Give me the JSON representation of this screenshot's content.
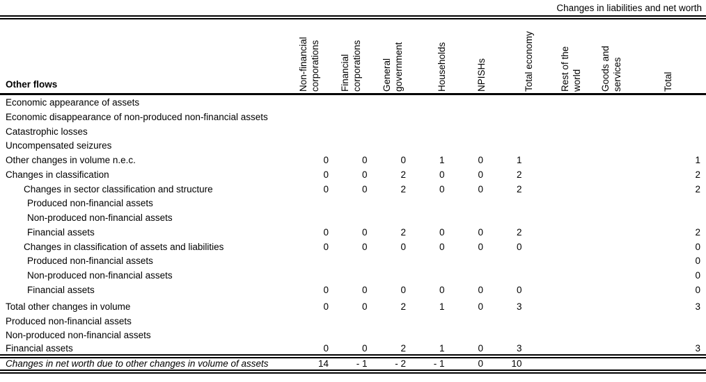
{
  "caption": "Changes in liabilities and net worth",
  "table": {
    "row_header_title": "Other flows",
    "columns": [
      {
        "label": "Non-financial\ncorporations"
      },
      {
        "label": "Financial\ncorporations"
      },
      {
        "label": "General\ngovernment"
      },
      {
        "label": "Households"
      },
      {
        "label": "NPISHs"
      },
      {
        "label": "Total economy"
      },
      {
        "label": "Rest of the\nworld"
      },
      {
        "label": "Goods and\nservices"
      },
      {
        "label": "Total"
      }
    ],
    "rows": [
      {
        "label": "Economic appearance of assets",
        "indent": 0,
        "group": "main",
        "values": [
          "",
          "",
          "",
          "",
          "",
          "",
          "",
          "",
          ""
        ]
      },
      {
        "label": "Economic disappearance of non-produced non-financial assets",
        "indent": 0,
        "group": "main",
        "values": [
          "",
          "",
          "",
          "",
          "",
          "",
          "",
          "",
          ""
        ]
      },
      {
        "label": "Catastrophic losses",
        "indent": 0,
        "group": "main",
        "values": [
          "",
          "",
          "",
          "",
          "",
          "",
          "",
          "",
          ""
        ]
      },
      {
        "label": "Uncompensated seizures",
        "indent": 0,
        "group": "main",
        "values": [
          "",
          "",
          "",
          "",
          "",
          "",
          "",
          "",
          ""
        ]
      },
      {
        "label": "Other changes in volume n.e.c.",
        "indent": 0,
        "group": "main",
        "values": [
          "0",
          "0",
          "0",
          "1",
          "0",
          "1",
          "",
          "",
          "1"
        ]
      },
      {
        "label": "Changes in classification",
        "indent": 0,
        "group": "main",
        "values": [
          "0",
          "0",
          "2",
          "0",
          "0",
          "2",
          "",
          "",
          "2"
        ]
      },
      {
        "label": "Changes in sector classification and structure",
        "indent": 1,
        "group": "main",
        "values": [
          "0",
          "0",
          "2",
          "0",
          "0",
          "2",
          "",
          "",
          "2"
        ]
      },
      {
        "label": "Produced non-financial assets",
        "indent": 2,
        "group": "main",
        "values": [
          "",
          "",
          "",
          "",
          "",
          "",
          "",
          "",
          ""
        ]
      },
      {
        "label": "Non-produced non-financial assets",
        "indent": 2,
        "group": "main",
        "values": [
          "",
          "",
          "",
          "",
          "",
          "",
          "",
          "",
          ""
        ]
      },
      {
        "label": "Financial assets",
        "indent": 2,
        "group": "main",
        "values": [
          "0",
          "0",
          "2",
          "0",
          "0",
          "2",
          "",
          "",
          "2"
        ]
      },
      {
        "label": "Changes in classification of assets and liabilities",
        "indent": 1,
        "group": "main",
        "values": [
          "0",
          "0",
          "0",
          "0",
          "0",
          "0",
          "",
          "",
          "0"
        ]
      },
      {
        "label": "Produced non-financial assets",
        "indent": 2,
        "group": "main",
        "values": [
          "",
          "",
          "",
          "",
          "",
          "",
          "",
          "",
          "0"
        ]
      },
      {
        "label": "Non-produced non-financial assets",
        "indent": 2,
        "group": "main",
        "values": [
          "",
          "",
          "",
          "",
          "",
          "",
          "",
          "",
          "0"
        ]
      },
      {
        "label": "Financial assets",
        "indent": 2,
        "group": "main",
        "values": [
          "0",
          "0",
          "0",
          "0",
          "0",
          "0",
          "",
          "",
          "0"
        ]
      },
      {
        "label": "Total other changes in volume",
        "indent": 0,
        "group": "summary",
        "values": [
          "0",
          "0",
          "2",
          "1",
          "0",
          "3",
          "",
          "",
          "3"
        ]
      },
      {
        "label": "Produced non-financial assets",
        "indent": 0,
        "group": "summary",
        "values": [
          "",
          "",
          "",
          "",
          "",
          "",
          "",
          "",
          ""
        ]
      },
      {
        "label": "Non-produced non-financial assets",
        "indent": 0,
        "group": "summary",
        "values": [
          "",
          "",
          "",
          "",
          "",
          "",
          "",
          "",
          ""
        ]
      },
      {
        "label": "Financial assets",
        "indent": 0,
        "group": "summary",
        "values": [
          "0",
          "0",
          "2",
          "1",
          "0",
          "3",
          "",
          "",
          "3"
        ]
      }
    ],
    "net_worth_row": {
      "label": "Changes in net worth due to other changes in volume of assets",
      "values": [
        "14",
        "- 1",
        "- 2",
        "- 1",
        "0",
        "10",
        "",
        "",
        ""
      ]
    }
  }
}
